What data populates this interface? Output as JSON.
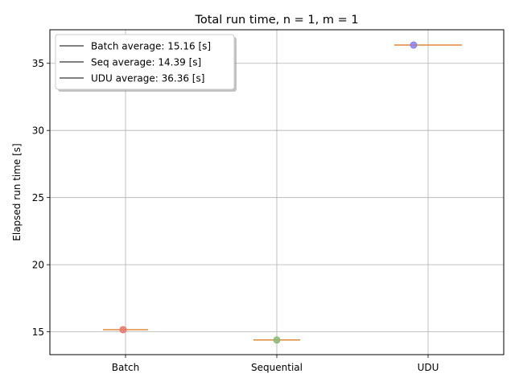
{
  "chart_data": {
    "type": "box",
    "title": "Total run time, n = 1, m = 1",
    "xlabel": "",
    "ylabel": "Elapsed run time [s]",
    "categories": [
      "Batch",
      "Sequential",
      "UDU"
    ],
    "yticks": [
      15,
      20,
      25,
      30,
      35
    ],
    "ylim": [
      13.3,
      37.5
    ],
    "grid": true,
    "series": [
      {
        "category": "Batch",
        "point": 15.16,
        "median": 15.16,
        "color": "#e8776a"
      },
      {
        "category": "Sequential",
        "point": 14.39,
        "median": 14.39,
        "color": "#8fb87a"
      },
      {
        "category": "UDU",
        "point": 36.36,
        "median": 36.36,
        "color": "#8a7fe8"
      }
    ],
    "median_color": "#e0893b",
    "legend": {
      "placement": "top-left",
      "entries": [
        "Batch average: 15.16 [s]",
        "Seq average: 14.39 [s]",
        "UDU average: 36.36 [s]"
      ]
    }
  }
}
